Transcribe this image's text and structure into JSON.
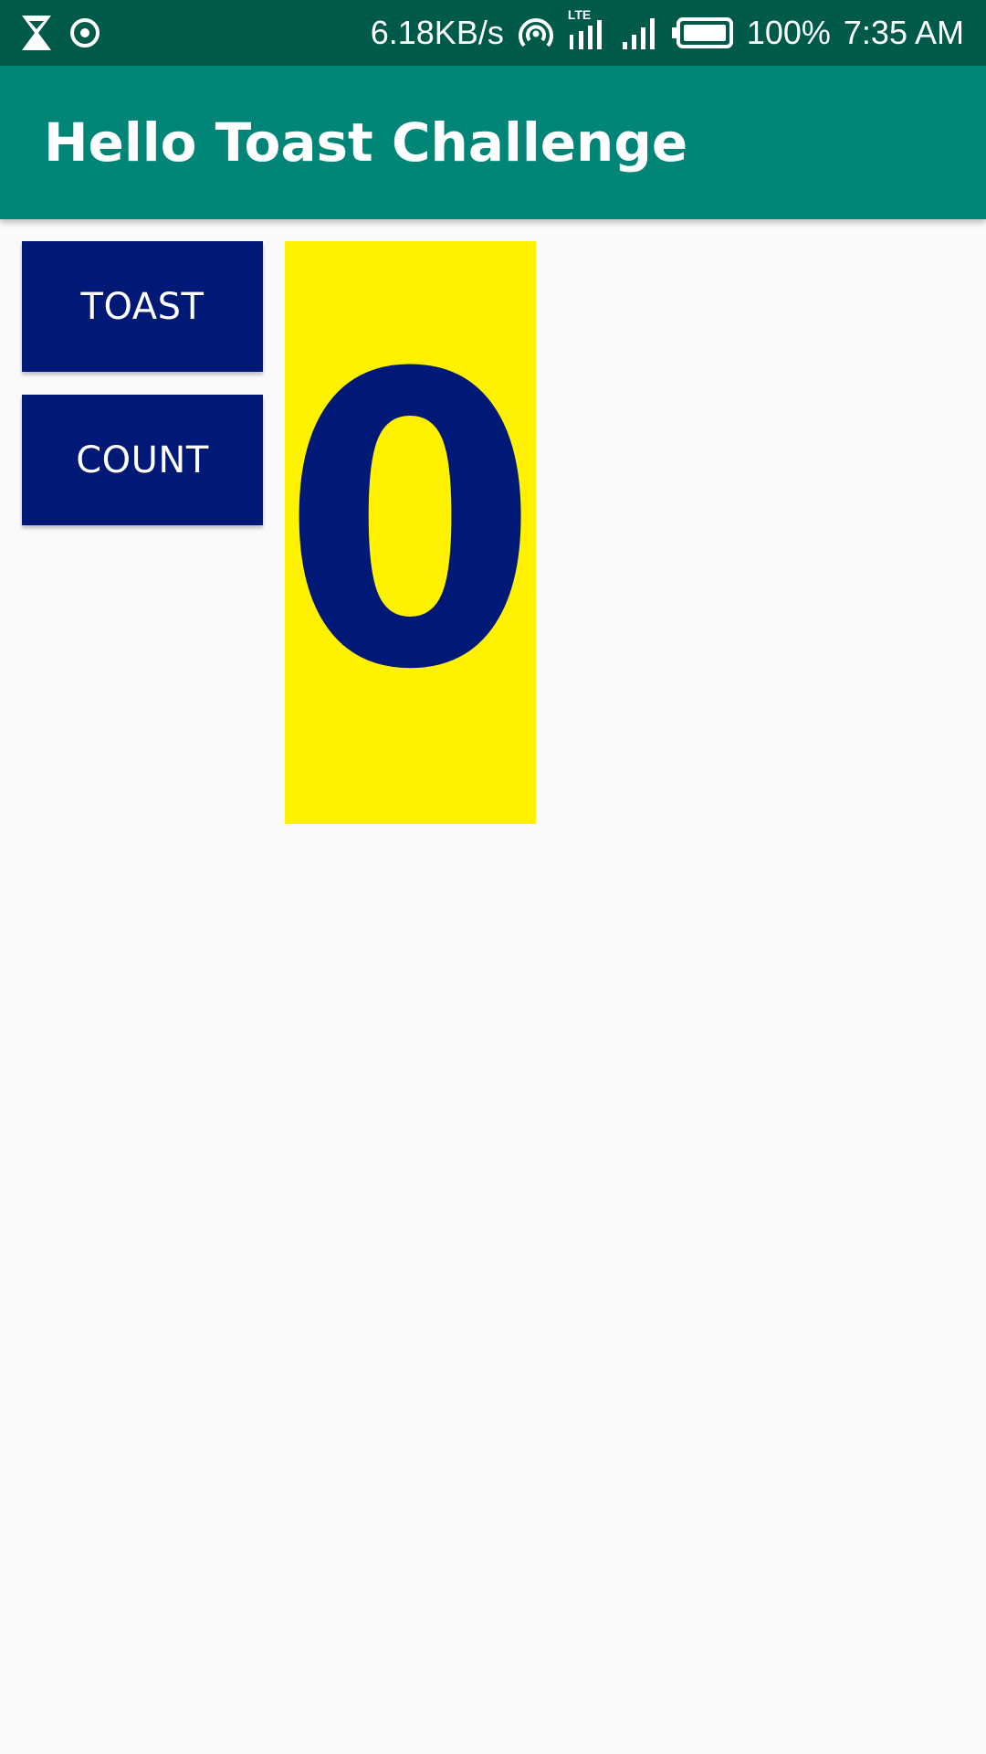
{
  "status_bar": {
    "network_speed": "6.18KB/s",
    "network_type": "LTE",
    "battery_percent": "100%",
    "time": "7:35 AM",
    "icons": [
      "hourglass-icon",
      "target-icon",
      "hotspot-icon",
      "lte-signal-icon",
      "signal-icon",
      "battery-icon"
    ]
  },
  "app_bar": {
    "title": "Hello Toast Challenge"
  },
  "main": {
    "toast_button_label": "TOAST",
    "count_button_label": "COUNT",
    "counter_value": "0"
  },
  "colors": {
    "status_bar": "#005a4a",
    "app_bar": "#008577",
    "button_bg": "#001976",
    "counter_bg": "#fff200",
    "counter_text": "#001976",
    "background": "#fafafa"
  }
}
